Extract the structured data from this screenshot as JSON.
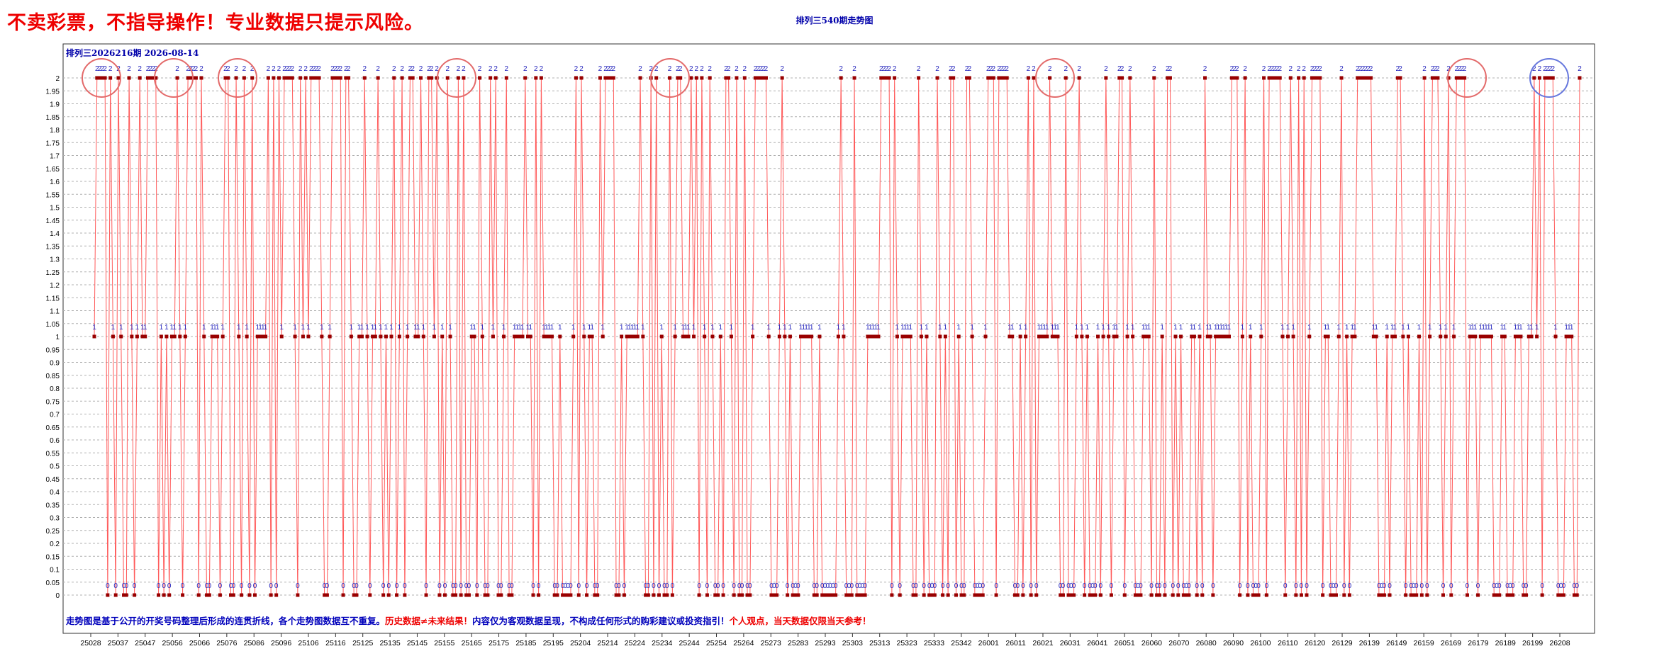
{
  "banner": "不卖彩票，不指导操作！专业数据只提示风险。",
  "issue_label": "排列三2026216期  2026-08-14",
  "footnote": {
    "part1": "走势图是基于公开的开奖号码整理后形成的连贯折线，各个走势图数据互不重复。",
    "part2": "历史数据≠未来结果！",
    "part3": "内容仅为客观数据呈现，不构成任何形式的购彩建议或投资指引！",
    "part4": "个人观点，当天数据仅限当天参考！"
  },
  "colors": {
    "line": "#ff5a5a",
    "marker": "#990000",
    "point_label": "#2222bb",
    "banner": "#ee0000",
    "title": "#0000aa",
    "circle_red": "#e36a6a",
    "circle_blue": "#6677dd",
    "arrow": "#e36a6a"
  },
  "chart_data": {
    "type": "line",
    "title": "排列三540期走势图",
    "xlabel": "",
    "ylabel": "",
    "ylim": [
      0,
      2
    ],
    "y_ticks": [
      "0",
      "0.05",
      "0.1",
      "0.15",
      "0.2",
      "0.25",
      "0.3",
      "0.35",
      "0.4",
      "0.45",
      "0.5",
      "0.55",
      "0.6",
      "0.65",
      "0.7",
      "0.75",
      "0.8",
      "0.85",
      "0.9",
      "0.95",
      "1",
      "1.05",
      "1.1",
      "1.15",
      "1.2",
      "1.25",
      "1.3",
      "1.35",
      "1.4",
      "1.45",
      "1.5",
      "1.55",
      "1.6",
      "1.65",
      "1.7",
      "1.75",
      "1.8",
      "1.85",
      "1.9",
      "1.95",
      "2"
    ],
    "x_tick_labels": [
      "25028",
      "25037",
      "25047",
      "25056",
      "25066",
      "25076",
      "25086",
      "25096",
      "25106",
      "25116",
      "25125",
      "25135",
      "25145",
      "25155",
      "25165",
      "25175",
      "25185",
      "25195",
      "25204",
      "25214",
      "25224",
      "25234",
      "25244",
      "25254",
      "25264",
      "25273",
      "25283",
      "25293",
      "25303",
      "25313",
      "25323",
      "25333",
      "25342",
      "26001",
      "26011",
      "26021",
      "26031",
      "26041",
      "26051",
      "26060",
      "26070",
      "26080",
      "26090",
      "26100",
      "26110",
      "26120",
      "26129",
      "26139",
      "26149",
      "26159",
      "26169",
      "26179",
      "26189",
      "26199",
      "26208"
    ],
    "grid": true,
    "series": [
      {
        "values": [
          1,
          2,
          2,
          2,
          2,
          0,
          2,
          1,
          0,
          2,
          1,
          0,
          0,
          2,
          1,
          0,
          1,
          2,
          1,
          1,
          2,
          2,
          2,
          2,
          0,
          1,
          0,
          1,
          0,
          1,
          1,
          2,
          1,
          0,
          1,
          2,
          2,
          2,
          2,
          0,
          2,
          1,
          0,
          0,
          1,
          1,
          1,
          0,
          1,
          2,
          2,
          0,
          0,
          2,
          1,
          0,
          2,
          1,
          0,
          2,
          0,
          1,
          1,
          1,
          1,
          2,
          0,
          2,
          0,
          2,
          1,
          2,
          2,
          2,
          2,
          1,
          0,
          2,
          1,
          2,
          1,
          2,
          2,
          2,
          2,
          1,
          0,
          0,
          1,
          2,
          2,
          2,
          2,
          0,
          2,
          2,
          1,
          0,
          0,
          1,
          1,
          2,
          1,
          0,
          1,
          1,
          2,
          1,
          0,
          1,
          0,
          1,
          2,
          0,
          1,
          2,
          0,
          1,
          2,
          2,
          1,
          1,
          2,
          1,
          0,
          2,
          2,
          1,
          2,
          0,
          1,
          0,
          2,
          1,
          0,
          0,
          2,
          0,
          2,
          0,
          0,
          1,
          1,
          0,
          2,
          1,
          0,
          0,
          2,
          1,
          2,
          0,
          0,
          1,
          2,
          0,
          0,
          1,
          1,
          1,
          1,
          2,
          1,
          1,
          0,
          2,
          0,
          2,
          1,
          1,
          1,
          1,
          0,
          0,
          1,
          0,
          0,
          0,
          0,
          1,
          2,
          0,
          2,
          1,
          0,
          1,
          1,
          0,
          0,
          2,
          1,
          2,
          2,
          2,
          2,
          0,
          0,
          1,
          0,
          1,
          1,
          1,
          1,
          1,
          2,
          1,
          0,
          0,
          2,
          0,
          2,
          0,
          1,
          0,
          0,
          2,
          0,
          1,
          2,
          2,
          1,
          1,
          1,
          2,
          1,
          2,
          0,
          2,
          1,
          0,
          2,
          1,
          0,
          0,
          1,
          0,
          2,
          2,
          1,
          0,
          2,
          0,
          0,
          2,
          0,
          0,
          1,
          2,
          2,
          2,
          2,
          2,
          1,
          0,
          0,
          0,
          1,
          2,
          1,
          0,
          1,
          0,
          0,
          0,
          1,
          1,
          1,
          1,
          1,
          0,
          0,
          1,
          0,
          0,
          0,
          0,
          0,
          0,
          1,
          2,
          1,
          0,
          0,
          0,
          2,
          0,
          0,
          0,
          0,
          1,
          1,
          1,
          1,
          1,
          2,
          2,
          2,
          2,
          0,
          2,
          1,
          0,
          1,
          1,
          1,
          1,
          0,
          0,
          2,
          1,
          0,
          1,
          0,
          0,
          0,
          2,
          1,
          0,
          1,
          0,
          2,
          2,
          0,
          1,
          0,
          0,
          2,
          2,
          1,
          0,
          0,
          0,
          0,
          1,
          2,
          2,
          2,
          0,
          2,
          2,
          2,
          2,
          1,
          1,
          0,
          0,
          1,
          0,
          1,
          2,
          0,
          2,
          0,
          1,
          1,
          1,
          1,
          2,
          1,
          1,
          1,
          0,
          0,
          2,
          0,
          0,
          0,
          1,
          2,
          1,
          0,
          1,
          0,
          0,
          0,
          1,
          0,
          1,
          2,
          1,
          0,
          1,
          1,
          2,
          2,
          0,
          1,
          2,
          1,
          0,
          0,
          0,
          1,
          1,
          1,
          0,
          2,
          0,
          0,
          1,
          0,
          2,
          2,
          0,
          1,
          0,
          1,
          0,
          0,
          0,
          1,
          1,
          0,
          1,
          0,
          2,
          1,
          1,
          0,
          1,
          1,
          1,
          1,
          1,
          1,
          2,
          2,
          2,
          0,
          1,
          2,
          0,
          1,
          0,
          0,
          0,
          1,
          2,
          0,
          2,
          2,
          2,
          2,
          2,
          1,
          0,
          1,
          2,
          1,
          0,
          2,
          0,
          2,
          0,
          1,
          2,
          2,
          2,
          2,
          0,
          1,
          1,
          0,
          0,
          0,
          1,
          2,
          0,
          1,
          0,
          1,
          1,
          2,
          2,
          2,
          2,
          2,
          2,
          1,
          1,
          0,
          0,
          0,
          1,
          0,
          1,
          1,
          2,
          2,
          1,
          0,
          1,
          0,
          0,
          0,
          1,
          0,
          2,
          0,
          1,
          2,
          2,
          2,
          1,
          0,
          1,
          2,
          0,
          1,
          2,
          2,
          2,
          2,
          0,
          1,
          1,
          1,
          0,
          1,
          1,
          1,
          1,
          1,
          0,
          0,
          0,
          1,
          1,
          0,
          0,
          0,
          1,
          1,
          1,
          0,
          0,
          1,
          1,
          2,
          1,
          2,
          0,
          2,
          2,
          2,
          2,
          1,
          0,
          0,
          0,
          1,
          1,
          1,
          0,
          0,
          2
        ]
      }
    ]
  }
}
